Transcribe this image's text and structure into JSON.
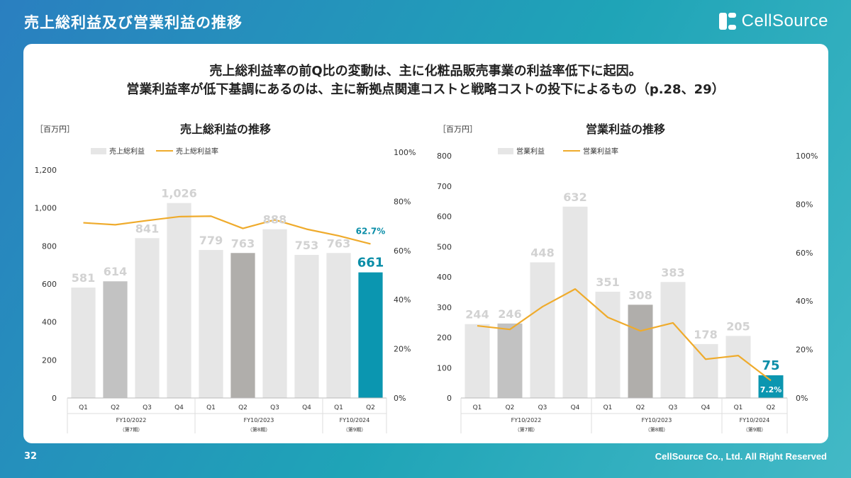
{
  "header": {
    "title": "売上総利益及び営業利益の推移",
    "brand": "CellSource"
  },
  "headline": {
    "line1": "売上総利益率の前Q比の変動は、主に化粧品販売事業の利益率低下に起因。",
    "line2": "営業利益率が低下基調にあるのは、主に新拠点関連コストと戦略コストの投下によるもの（p.28、29）"
  },
  "footer": {
    "page": "32",
    "copyright": "CellSource Co., Ltd. All Right Reserved"
  },
  "colors": {
    "bar_light": "#e6e6e6",
    "bar_mid_light": "#c2c2c2",
    "bar_dark": "#b0aeab",
    "bar_current": "#0b96b0",
    "line": "#efab2c",
    "value_label": "#d2d2d2",
    "highlight": "#0b8ea8"
  },
  "chart_data": [
    {
      "type": "bar",
      "title": "売上総利益の推移",
      "unit_label": "［百万円］",
      "categories": [
        "Q1",
        "Q2",
        "Q3",
        "Q4",
        "Q1",
        "Q2",
        "Q3",
        "Q4",
        "Q1",
        "Q2"
      ],
      "fiscal_groups": [
        {
          "name": "FY10/2022",
          "period": "（第7期）",
          "count": 4
        },
        {
          "name": "FY10/2023",
          "period": "（第8期）",
          "count": 4
        },
        {
          "name": "FY10/2024",
          "period": "（第9期）",
          "count": 2
        }
      ],
      "series": [
        {
          "name": "売上総利益",
          "kind": "bar",
          "axis": "left",
          "values": [
            581,
            614,
            841,
            1026,
            779,
            763,
            888,
            753,
            763,
            661
          ],
          "labels": [
            "581",
            "614",
            "841",
            "1,026",
            "779",
            "763",
            "888",
            "753",
            "763",
            "661"
          ],
          "shades": [
            "light",
            "mid",
            "light",
            "light",
            "light",
            "dark",
            "light",
            "light",
            "light",
            "current"
          ]
        },
        {
          "name": "売上総利益率",
          "kind": "line",
          "axis": "right",
          "values": [
            71.3,
            70.5,
            72.2,
            73.8,
            74.0,
            69.0,
            72.5,
            68.7,
            66.0,
            62.7
          ],
          "last_label": "62.7%"
        }
      ],
      "y_left": {
        "min": 0,
        "max": 1200,
        "ticks": [
          0,
          200,
          400,
          600,
          800,
          1000,
          1200
        ],
        "tick_labels": [
          "0",
          "200",
          "400",
          "600",
          "800",
          "1,000",
          "1,200"
        ]
      },
      "y_right": {
        "min": 0,
        "max": 100,
        "ticks": [
          0,
          20,
          40,
          60,
          80,
          100
        ],
        "tick_labels": [
          "0%",
          "20%",
          "40%",
          "60%",
          "80%",
          "100%"
        ]
      },
      "legend": "top-left"
    },
    {
      "type": "bar",
      "title": "営業利益の推移",
      "unit_label": "［百万円］",
      "categories": [
        "Q1",
        "Q2",
        "Q3",
        "Q4",
        "Q1",
        "Q2",
        "Q3",
        "Q4",
        "Q1",
        "Q2"
      ],
      "fiscal_groups": [
        {
          "name": "FY10/2022",
          "period": "（第7期）",
          "count": 4
        },
        {
          "name": "FY10/2023",
          "period": "（第8期）",
          "count": 4
        },
        {
          "name": "FY10/2024",
          "period": "（第9期）",
          "count": 2
        }
      ],
      "series": [
        {
          "name": "営業利益",
          "kind": "bar",
          "axis": "left",
          "values": [
            244,
            246,
            448,
            632,
            351,
            308,
            383,
            178,
            205,
            75
          ],
          "labels": [
            "244",
            "246",
            "448",
            "632",
            "351",
            "308",
            "383",
            "178",
            "205",
            "75"
          ],
          "shades": [
            "light",
            "mid",
            "light",
            "light",
            "light",
            "dark",
            "light",
            "light",
            "light",
            "current"
          ]
        },
        {
          "name": "営業利益率",
          "kind": "line",
          "axis": "right",
          "values": [
            29.8,
            28.3,
            37.7,
            45.0,
            33.3,
            27.7,
            31.0,
            16.0,
            17.5,
            7.2
          ],
          "last_label": "7.2%"
        }
      ],
      "y_left": {
        "min": 0,
        "max": 800,
        "ticks": [
          0,
          100,
          200,
          300,
          400,
          500,
          600,
          700,
          800
        ],
        "tick_labels": [
          "0",
          "100",
          "200",
          "300",
          "400",
          "500",
          "600",
          "700",
          "800"
        ]
      },
      "y_right": {
        "min": 0,
        "max": 100,
        "ticks": [
          0,
          20,
          40,
          60,
          80,
          100
        ],
        "tick_labels": [
          "0%",
          "20%",
          "40%",
          "60%",
          "80%",
          "100%"
        ]
      },
      "legend": "top-left"
    }
  ]
}
